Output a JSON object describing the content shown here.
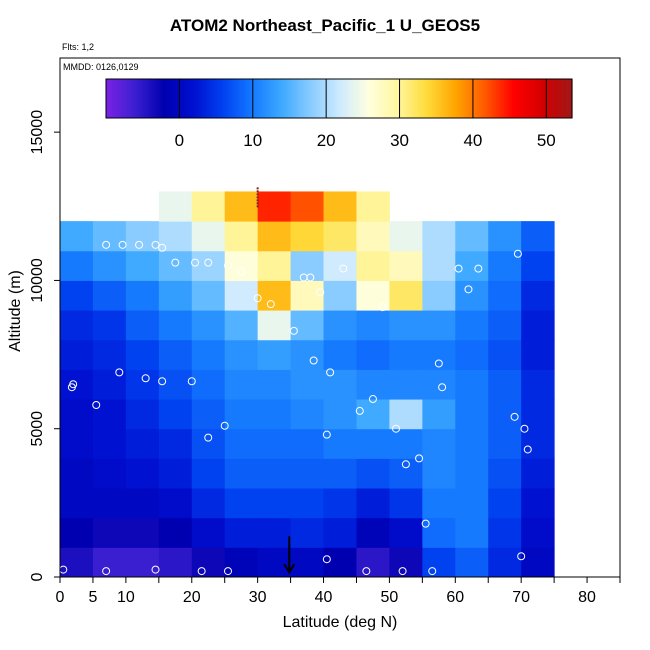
{
  "chart_data": {
    "type": "heatmap",
    "title": "ATOM2 Northeast_Pacific_1 U_GEOS5",
    "annotations": [
      "Flts: 1,2",
      "MMDD: 0126,0129"
    ],
    "xlabel": "Latitude (deg N)",
    "ylabel": "Altitude (m)",
    "xlim": [
      0,
      85
    ],
    "ylim": [
      0,
      17500
    ],
    "x_ticks": [
      0,
      5,
      10,
      20,
      30,
      40,
      50,
      60,
      70,
      80
    ],
    "y_ticks": [
      0,
      5000,
      10000,
      15000
    ],
    "colorbar": {
      "range": [
        -10,
        53.5
      ],
      "ticks": [
        0,
        10,
        20,
        30,
        40,
        50
      ],
      "colors": [
        "#7B22E6",
        "#3A1FD0",
        "#0000B0",
        "#0010D0",
        "#0040F0",
        "#1478FF",
        "#3CA8FF",
        "#86CAFF",
        "#CCEAFF",
        "#FFFFE0",
        "#FFF6A0",
        "#FFDC3C",
        "#FFA500",
        "#FF5A00",
        "#FF0000",
        "#D40000",
        "#A01818"
      ]
    },
    "value_grid": {
      "lat_bins": [
        0,
        5,
        10,
        15,
        20,
        25,
        30,
        35,
        40,
        45,
        50,
        55,
        60,
        65,
        70
      ],
      "alt_bins": [
        0,
        1000,
        2000,
        3000,
        4000,
        5000,
        6000,
        7000,
        8000,
        9000,
        10000,
        11000,
        12000
      ],
      "values": [
        [
          -4,
          -6,
          -6,
          -5,
          -3,
          -1,
          0,
          0,
          -2,
          -5,
          -3,
          6,
          8,
          4,
          0
        ],
        [
          -2,
          -3,
          -3,
          -2,
          1,
          3,
          3,
          4,
          3,
          -1,
          1,
          9,
          10,
          5,
          1
        ],
        [
          0,
          0,
          0,
          1,
          4,
          6,
          6,
          6,
          5,
          3,
          5,
          10,
          10,
          6,
          2
        ],
        [
          0,
          1,
          2,
          3,
          6,
          8,
          8,
          8,
          8,
          7,
          8,
          11,
          10,
          7,
          3
        ],
        [
          1,
          2,
          3,
          4,
          7,
          9,
          9,
          9,
          10,
          10,
          10,
          11,
          10,
          8,
          4
        ],
        [
          1,
          2,
          4,
          6,
          8,
          10,
          10,
          11,
          12,
          14,
          20,
          13,
          10,
          8,
          4
        ],
        [
          2,
          3,
          5,
          7,
          9,
          11,
          11,
          12,
          12,
          11,
          11,
          11,
          10,
          8,
          4
        ],
        [
          3,
          4,
          6,
          8,
          10,
          12,
          13,
          12,
          10,
          9,
          10,
          10,
          9,
          7,
          3
        ],
        [
          4,
          5,
          8,
          10,
          12,
          15,
          24,
          16,
          12,
          11,
          12,
          12,
          10,
          8,
          3
        ],
        [
          6,
          8,
          10,
          13,
          16,
          22,
          36,
          28,
          18,
          26,
          32,
          18,
          12,
          9,
          4
        ],
        [
          10,
          12,
          14,
          16,
          19,
          26,
          30,
          18,
          22,
          30,
          28,
          20,
          14,
          10,
          6
        ],
        [
          14,
          16,
          18,
          20,
          24,
          30,
          36,
          34,
          32,
          28,
          24,
          20,
          16,
          12,
          8
        ],
        [
          null,
          null,
          null,
          24,
          30,
          36,
          44,
          42,
          36,
          30,
          null,
          null,
          null,
          null,
          null
        ]
      ]
    },
    "observations": [
      {
        "lat": 0.5,
        "alt": 250
      },
      {
        "lat": 7,
        "alt": 200
      },
      {
        "lat": 14.5,
        "alt": 250
      },
      {
        "lat": 21.5,
        "alt": 200
      },
      {
        "lat": 25.5,
        "alt": 200
      },
      {
        "lat": 40.5,
        "alt": 600
      },
      {
        "lat": 46.5,
        "alt": 200
      },
      {
        "lat": 52,
        "alt": 200
      },
      {
        "lat": 56.5,
        "alt": 200
      },
      {
        "lat": 70,
        "alt": 700
      },
      {
        "lat": 55.5,
        "alt": 1800
      },
      {
        "lat": 52.5,
        "alt": 3800
      },
      {
        "lat": 54.5,
        "alt": 4000
      },
      {
        "lat": 71,
        "alt": 4300
      },
      {
        "lat": 22.5,
        "alt": 4700
      },
      {
        "lat": 25,
        "alt": 5100
      },
      {
        "lat": 40.5,
        "alt": 4800
      },
      {
        "lat": 51,
        "alt": 5000
      },
      {
        "lat": 70.5,
        "alt": 5000
      },
      {
        "lat": 69,
        "alt": 5400
      },
      {
        "lat": 5.5,
        "alt": 5800
      },
      {
        "lat": 45.5,
        "alt": 5600
      },
      {
        "lat": 47.5,
        "alt": 6000
      },
      {
        "lat": 1.8,
        "alt": 6400
      },
      {
        "lat": 2,
        "alt": 6500
      },
      {
        "lat": 9,
        "alt": 6900
      },
      {
        "lat": 13,
        "alt": 6700
      },
      {
        "lat": 15.5,
        "alt": 6600
      },
      {
        "lat": 20,
        "alt": 6600
      },
      {
        "lat": 41,
        "alt": 6900
      },
      {
        "lat": 38.5,
        "alt": 7300
      },
      {
        "lat": 57.5,
        "alt": 7200
      },
      {
        "lat": 58,
        "alt": 6400
      },
      {
        "lat": 35.5,
        "alt": 8300
      },
      {
        "lat": 30,
        "alt": 9400
      },
      {
        "lat": 32,
        "alt": 9200
      },
      {
        "lat": 49,
        "alt": 9100
      },
      {
        "lat": 39.5,
        "alt": 9600
      },
      {
        "lat": 37,
        "alt": 10100
      },
      {
        "lat": 38,
        "alt": 10100
      },
      {
        "lat": 62,
        "alt": 9700
      },
      {
        "lat": 27.5,
        "alt": 10300
      },
      {
        "lat": 43,
        "alt": 10400
      },
      {
        "lat": 60.5,
        "alt": 10400
      },
      {
        "lat": 63.5,
        "alt": 10400
      },
      {
        "lat": 17.5,
        "alt": 10600
      },
      {
        "lat": 20.5,
        "alt": 10600
      },
      {
        "lat": 22.5,
        "alt": 10600
      },
      {
        "lat": 25.5,
        "alt": 10500
      },
      {
        "lat": 69.5,
        "alt": 10900
      },
      {
        "lat": 7,
        "alt": 11200
      },
      {
        "lat": 9.5,
        "alt": 11200
      },
      {
        "lat": 12,
        "alt": 11200
      },
      {
        "lat": 14.5,
        "alt": 11200
      },
      {
        "lat": 15.5,
        "alt": 11100
      }
    ],
    "markers": [
      {
        "label": "arrow",
        "lat": 34.8,
        "alt": 700
      },
      {
        "label": "tick",
        "lat": 30,
        "alt": 12800
      }
    ],
    "grid": false,
    "legend": "colorbar top"
  }
}
